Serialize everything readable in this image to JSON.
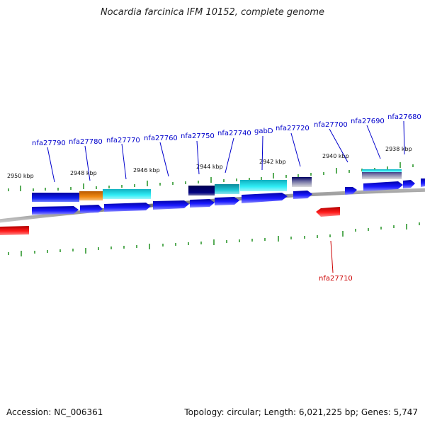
{
  "title": "Nocardia farcinica IFM 10152, complete genome",
  "footer": {
    "accession": "Accession: NC_006361",
    "summary": "Topology: circular; Length: 6,021,225 bp; Genes: 5,747"
  },
  "colors": {
    "forward_gene": "#1a1aff",
    "reverse_gene": "#ff0000",
    "forward_label": "#0000cc",
    "reverse_label": "#cc0000",
    "tick": "#118811",
    "backbone": "#888888",
    "feature_dark": "#00007a",
    "feature_blue": "#0a1ee8",
    "feature_orange": "#e6810f",
    "feature_cyan": "#27e6ee",
    "feature_teal": "#1ab8c8"
  },
  "scale_labels": [
    "2950 kbp",
    "2948 kbp",
    "2946 kbp",
    "2944 kbp",
    "2942 kbp",
    "2940 kbp",
    "2938 kbp"
  ],
  "forward_gene_labels": [
    "nfa27790",
    "nfa27780",
    "nfa27770",
    "nfa27760",
    "nfa27750",
    "nfa27740",
    "gabD",
    "nfa27720",
    "nfa27700",
    "nfa27690",
    "nfa27680"
  ],
  "reverse_gene_labels": [
    "nfa27710"
  ]
}
